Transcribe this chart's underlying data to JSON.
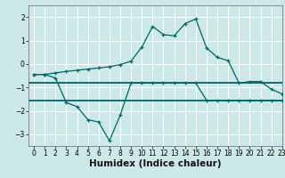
{
  "title": "",
  "xlabel": "Humidex (Indice chaleur)",
  "ylabel": "",
  "background_color": "#cde8e8",
  "grid_color": "#ffffff",
  "line_color": "#006666",
  "x_upper": [
    0,
    1,
    2,
    3,
    4,
    5,
    6,
    7,
    8,
    9,
    10,
    11,
    12,
    13,
    14,
    15,
    16,
    17,
    18,
    19,
    20,
    21,
    22,
    23
  ],
  "y_upper": [
    -0.45,
    -0.45,
    -0.38,
    -0.32,
    -0.27,
    -0.22,
    -0.17,
    -0.12,
    -0.03,
    0.12,
    0.72,
    1.6,
    1.25,
    1.2,
    1.72,
    1.92,
    0.68,
    0.28,
    0.14,
    -0.82,
    -0.75,
    -0.75,
    -1.08,
    -1.28
  ],
  "x_lower": [
    0,
    1,
    2,
    3,
    4,
    5,
    6,
    7,
    8,
    9,
    10,
    11,
    12,
    13,
    14,
    15,
    16,
    17,
    18,
    19,
    20,
    21,
    22,
    23
  ],
  "y_lower": [
    -0.45,
    -0.45,
    -0.6,
    -1.65,
    -1.82,
    -2.38,
    -2.48,
    -3.28,
    -2.18,
    -0.82,
    -0.82,
    -0.82,
    -0.82,
    -0.82,
    -0.82,
    -0.82,
    -1.55,
    -1.55,
    -1.55,
    -1.55,
    -1.55,
    -1.55,
    -1.55,
    -1.55
  ],
  "hline1_y": -0.82,
  "hline2_y": -1.55,
  "xlim": [
    -0.5,
    23
  ],
  "ylim": [
    -3.5,
    2.5
  ],
  "yticks": [
    -3,
    -2,
    -1,
    0,
    1,
    2
  ],
  "xticks": [
    0,
    1,
    2,
    3,
    4,
    5,
    6,
    7,
    8,
    9,
    10,
    11,
    12,
    13,
    14,
    15,
    16,
    17,
    18,
    19,
    20,
    21,
    22,
    23
  ],
  "tick_fontsize": 5.5,
  "xlabel_fontsize": 7.5
}
